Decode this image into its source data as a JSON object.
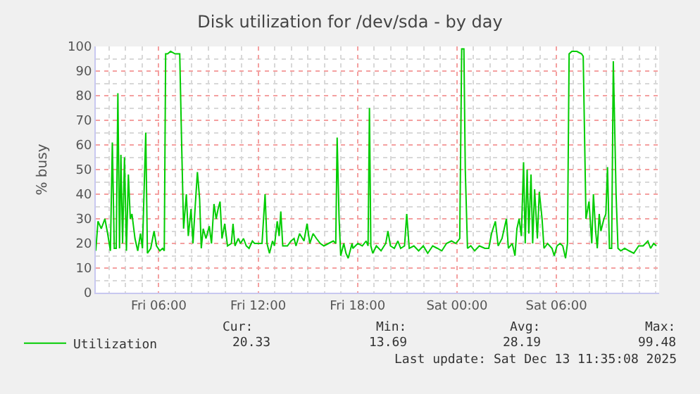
{
  "chart_data": {
    "type": "line",
    "title": "Disk utilization for /dev/sda - by day",
    "ylabel": "% busy",
    "xlim": [
      "2025-12-12T02:12",
      "2025-12-13T12:12"
    ],
    "xticks": [
      {
        "value": "2025-12-12T06:00",
        "label": "Fri 06:00"
      },
      {
        "value": "2025-12-12T12:00",
        "label": "Fri 12:00"
      },
      {
        "value": "2025-12-12T18:00",
        "label": "Fri 18:00"
      },
      {
        "value": "2025-12-13T00:00",
        "label": "Sat 00:00"
      },
      {
        "value": "2025-12-13T06:00",
        "label": "Sat 06:00"
      }
    ],
    "ylim": [
      0,
      100
    ],
    "yticks": [
      0,
      10,
      20,
      30,
      40,
      50,
      60,
      70,
      80,
      90,
      100
    ],
    "grid": true,
    "legend": "bottom",
    "marker": "none",
    "line_style": "solid",
    "x": [
      "2025-12-12T02:12",
      "2025-12-12T02:20",
      "2025-12-12T02:32",
      "2025-12-12T02:45",
      "2025-12-12T02:55",
      "2025-12-12T03:05",
      "2025-12-12T03:12",
      "2025-12-12T03:19",
      "2025-12-12T03:26",
      "2025-12-12T03:32",
      "2025-12-12T03:38",
      "2025-12-12T03:43",
      "2025-12-12T03:49",
      "2025-12-12T03:56",
      "2025-12-12T04:03",
      "2025-12-12T04:10",
      "2025-12-12T04:17",
      "2025-12-12T04:23",
      "2025-12-12T04:34",
      "2025-12-12T04:44",
      "2025-12-12T04:54",
      "2025-12-12T05:01",
      "2025-12-12T05:13",
      "2025-12-12T05:19",
      "2025-12-12T05:31",
      "2025-12-12T05:43",
      "2025-12-12T05:52",
      "2025-12-12T06:04",
      "2025-12-12T06:14",
      "2025-12-12T06:20",
      "2025-12-12T06:25",
      "2025-12-12T06:32",
      "2025-12-12T06:43",
      "2025-12-12T06:59",
      "2025-12-12T07:16",
      "2025-12-12T07:23",
      "2025-12-12T07:30",
      "2025-12-12T07:40",
      "2025-12-12T07:47",
      "2025-12-12T07:57",
      "2025-12-12T08:04",
      "2025-12-12T08:12",
      "2025-12-12T08:20",
      "2025-12-12T08:28",
      "2025-12-12T08:34",
      "2025-12-12T08:41",
      "2025-12-12T08:51",
      "2025-12-12T09:03",
      "2025-12-12T09:11",
      "2025-12-12T09:20",
      "2025-12-12T09:28",
      "2025-12-12T09:35",
      "2025-12-12T09:42",
      "2025-12-12T09:49",
      "2025-12-12T09:59",
      "2025-12-12T10:09",
      "2025-12-12T10:23",
      "2025-12-12T10:29",
      "2025-12-12T10:36",
      "2025-12-12T10:48",
      "2025-12-12T10:56",
      "2025-12-12T11:07",
      "2025-12-12T11:17",
      "2025-12-12T11:27",
      "2025-12-12T11:39",
      "2025-12-12T11:47",
      "2025-12-12T12:01",
      "2025-12-12T12:14",
      "2025-12-12T12:25",
      "2025-12-12T12:32",
      "2025-12-12T12:41",
      "2025-12-12T12:52",
      "2025-12-12T12:59",
      "2025-12-12T13:09",
      "2025-12-12T13:16",
      "2025-12-12T13:22",
      "2025-12-12T13:29",
      "2025-12-12T13:46",
      "2025-12-12T13:59",
      "2025-12-12T14:10",
      "2025-12-12T14:17",
      "2025-12-12T14:30",
      "2025-12-12T14:46",
      "2025-12-12T14:57",
      "2025-12-12T15:07",
      "2025-12-12T15:19",
      "2025-12-12T15:31",
      "2025-12-12T15:45",
      "2025-12-12T15:58",
      "2025-12-12T16:15",
      "2025-12-12T16:32",
      "2025-12-12T16:41",
      "2025-12-12T16:46",
      "2025-12-12T16:53",
      "2025-12-12T16:59",
      "2025-12-12T17:10",
      "2025-12-12T17:18",
      "2025-12-12T17:26",
      "2025-12-12T17:40",
      "2025-12-12T17:43",
      "2025-12-12T18:01",
      "2025-12-12T18:17",
      "2025-12-12T18:31",
      "2025-12-12T18:38",
      "2025-12-12T18:43",
      "2025-12-12T18:48",
      "2025-12-12T18:55",
      "2025-12-12T19:08",
      "2025-12-12T19:25",
      "2025-12-12T19:42",
      "2025-12-12T19:50",
      "2025-12-12T19:59",
      "2025-12-12T20:13",
      "2025-12-12T20:26",
      "2025-12-12T20:36",
      "2025-12-12T20:50",
      "2025-12-12T20:58",
      "2025-12-12T21:07",
      "2025-12-12T21:24",
      "2025-12-12T21:41",
      "2025-12-12T21:58",
      "2025-12-12T22:14",
      "2025-12-12T22:32",
      "2025-12-12T22:49",
      "2025-12-12T23:05",
      "2025-12-12T23:22",
      "2025-12-12T23:40",
      "2025-12-12T23:56",
      "2025-12-13T00:10",
      "2025-12-13T00:17",
      "2025-12-13T00:25",
      "2025-12-13T00:30",
      "2025-12-13T00:38",
      "2025-12-13T00:50",
      "2025-12-13T01:04",
      "2025-12-13T01:21",
      "2025-12-13T01:41",
      "2025-12-13T01:55",
      "2025-12-13T02:05",
      "2025-12-13T02:19",
      "2025-12-13T02:29",
      "2025-12-13T02:43",
      "2025-12-13T02:59",
      "2025-12-13T03:06",
      "2025-12-13T03:20",
      "2025-12-13T03:30",
      "2025-12-13T03:37",
      "2025-12-13T03:45",
      "2025-12-13T03:53",
      "2025-12-13T04:01",
      "2025-12-13T04:07",
      "2025-12-13T04:14",
      "2025-12-13T04:20",
      "2025-12-13T04:28",
      "2025-12-13T04:34",
      "2025-12-13T04:41",
      "2025-12-13T04:51",
      "2025-12-13T04:58",
      "2025-12-13T05:08",
      "2025-12-13T05:15",
      "2025-12-13T05:28",
      "2025-12-13T05:44",
      "2025-12-13T05:52",
      "2025-12-13T06:02",
      "2025-12-13T06:13",
      "2025-12-13T06:23",
      "2025-12-13T06:33",
      "2025-12-13T06:40",
      "2025-12-13T06:46",
      "2025-12-13T06:56",
      "2025-12-13T07:14",
      "2025-12-13T07:31",
      "2025-12-13T07:37",
      "2025-12-13T07:47",
      "2025-12-13T07:58",
      "2025-12-13T08:08",
      "2025-12-13T08:14",
      "2025-12-13T08:22",
      "2025-12-13T08:28",
      "2025-12-13T08:35",
      "2025-12-13T08:41",
      "2025-12-13T08:52",
      "2025-12-13T08:59",
      "2025-12-13T09:05",
      "2025-12-13T09:12",
      "2025-12-13T09:20",
      "2025-12-13T09:26",
      "2025-12-13T09:36",
      "2025-12-13T09:43",
      "2025-12-13T09:53",
      "2025-12-13T10:07",
      "2025-12-13T10:23",
      "2025-12-13T10:40",
      "2025-12-13T10:58",
      "2025-12-13T11:14",
      "2025-12-13T11:31",
      "2025-12-13T11:41",
      "2025-12-13T11:52",
      "2025-12-13T12:02"
    ],
    "series": [
      {
        "name": "Utilization",
        "color": "#00cc00",
        "values": [
          17,
          29,
          26,
          30,
          24,
          17,
          61,
          18,
          18,
          81,
          18,
          56,
          20,
          55,
          17,
          48,
          30,
          32,
          22,
          17,
          24,
          18,
          65,
          16,
          18,
          25,
          19,
          17,
          18,
          17,
          97,
          97,
          98,
          97,
          97,
          60,
          26,
          40,
          23,
          34,
          20,
          35,
          49,
          38,
          18,
          26,
          22,
          27,
          20,
          36,
          30,
          34,
          37,
          22,
          28,
          19,
          20,
          28,
          19,
          22,
          20,
          22,
          19,
          18,
          21,
          20,
          20,
          20,
          40,
          20,
          16,
          21,
          19,
          29,
          23,
          33,
          19,
          19,
          21,
          22,
          19,
          24,
          21,
          28,
          20,
          24,
          22,
          20,
          19,
          20,
          21,
          20,
          63,
          30,
          15,
          20,
          16,
          14,
          20,
          18,
          20,
          19,
          21,
          19,
          75,
          19,
          16,
          19,
          17,
          20,
          25,
          19,
          18,
          21,
          18,
          19,
          32,
          18,
          19,
          17,
          19,
          16,
          19,
          18,
          17,
          20,
          21,
          20,
          22,
          99,
          99,
          50,
          18,
          19,
          17,
          19,
          18,
          18,
          24,
          29,
          19,
          22,
          30,
          18,
          20,
          15,
          26,
          30,
          23,
          53,
          20,
          50,
          24,
          48,
          20,
          42,
          22,
          41,
          30,
          18,
          20,
          18,
          15,
          19,
          20,
          19,
          14,
          20,
          97,
          98,
          98,
          97,
          96,
          30,
          37,
          20,
          40,
          25,
          18,
          32,
          25,
          30,
          32,
          51,
          18,
          18,
          94,
          40,
          18,
          17,
          18,
          17,
          16,
          19,
          19,
          21,
          18,
          20,
          19
        ]
      }
    ],
    "annotations": [
      "Cur:",
      "Min:",
      "Avg:",
      "Max:",
      "20.33",
      "13.69",
      "28.19",
      "99.48",
      "Last update: Sat Dec 13 11:35:08 2025"
    ]
  }
}
